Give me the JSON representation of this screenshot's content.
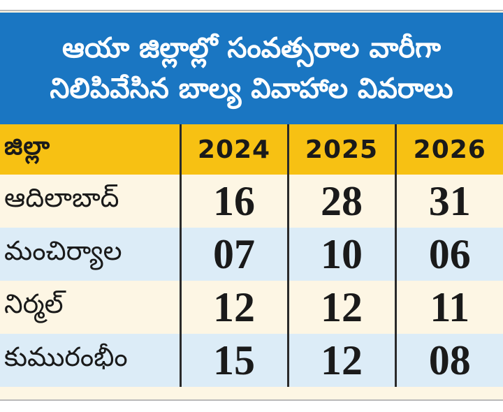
{
  "title": {
    "line1": "ఆయా జిల్లాల్లో సంవత్సరాల వారీగా",
    "line2": "నిలిపివేసిన బాల్య వివాహాల వివరాలు"
  },
  "table": {
    "headers": [
      "జిల్లా",
      "2024",
      "2025",
      "2026"
    ],
    "rows": [
      {
        "district": "ఆదిలాబాద్",
        "values": [
          "16",
          "28",
          "31"
        ]
      },
      {
        "district": "మంచిర్యాల",
        "values": [
          "07",
          "10",
          "06"
        ]
      },
      {
        "district": "నిర్మల్",
        "values": [
          "12",
          "12",
          "11"
        ]
      },
      {
        "district": "కుమురంభీం",
        "values": [
          "15",
          "12",
          "08"
        ]
      }
    ]
  },
  "colors": {
    "title_bg": "#1a76c2",
    "header_bg": "#f7c113",
    "row_light": "#fdf6e4",
    "row_blue": "#dcecf7"
  }
}
